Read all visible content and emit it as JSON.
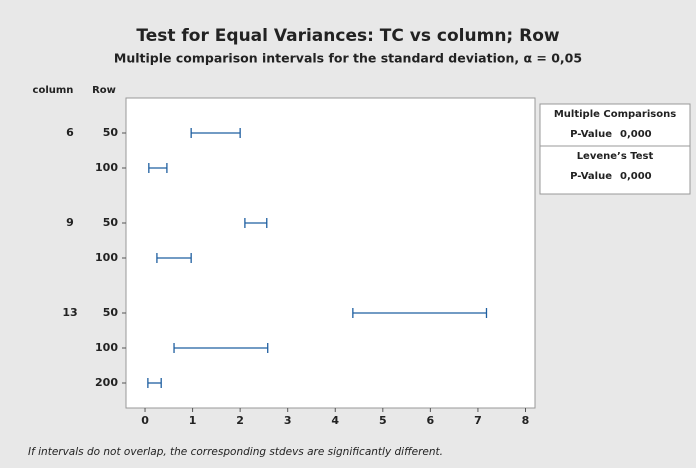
{
  "chart_data": {
    "type": "interval",
    "title": "Test for Equal Variances: TC vs column; Row",
    "subtitle": "Multiple comparison intervals for the standard deviation, α = 0,05",
    "column_header": "column",
    "row_header": "Row",
    "columns": [
      "6",
      null,
      "9",
      null,
      "13",
      null,
      null
    ],
    "rows": [
      "50",
      "100",
      "50",
      "100",
      "50",
      "100",
      "200"
    ],
    "lower": [
      0.97,
      0.08,
      2.1,
      0.25,
      4.37,
      0.61,
      0.06
    ],
    "upper": [
      2.0,
      0.46,
      2.56,
      0.97,
      7.18,
      2.58,
      0.34
    ],
    "color": "#1f5fa0",
    "xlim": [
      -0.4,
      8.2
    ],
    "xticks": [
      0,
      1,
      2,
      3,
      4,
      5,
      6,
      7,
      8
    ],
    "tests": [
      {
        "name": "Multiple Comparisons",
        "label": "P-Value",
        "value": "0,000"
      },
      {
        "name": "Levene’s Test",
        "label": "P-Value",
        "value": "0,000"
      }
    ],
    "footnote": "If intervals do not overlap, the corresponding stdevs are significantly different."
  }
}
